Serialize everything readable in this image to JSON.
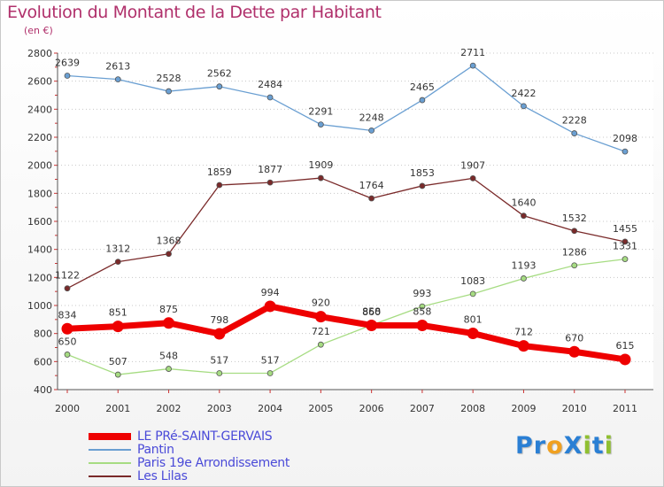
{
  "header": {
    "title": "Evolution du Montant de la Dette par Habitant",
    "subtitle": "(en €)"
  },
  "logo": {
    "text": "ProXiti",
    "letters": [
      {
        "ch": "P",
        "color": "#2a7fd4"
      },
      {
        "ch": "r",
        "color": "#2a7fd4"
      },
      {
        "ch": "o",
        "color": "#f0a020"
      },
      {
        "ch": "X",
        "color": "#2a7fd4"
      },
      {
        "ch": "i",
        "color": "#90c030"
      },
      {
        "ch": "t",
        "color": "#2a7fd4"
      },
      {
        "ch": "i",
        "color": "#90c030"
      }
    ]
  },
  "chart_data": {
    "type": "line",
    "title": "Evolution du Montant de la Dette par Habitant",
    "ylabel": "(en €)",
    "xlabel": "",
    "ylim": [
      400,
      2800
    ],
    "yticks": [
      400,
      600,
      800,
      1000,
      1200,
      1400,
      1600,
      1800,
      2000,
      2200,
      2400,
      2600,
      2800
    ],
    "categories": [
      "2000",
      "2001",
      "2002",
      "2003",
      "2004",
      "2005",
      "2006",
      "2007",
      "2008",
      "2009",
      "2010",
      "2011"
    ],
    "grid": "horizontal dotted",
    "legend_position": "bottom-left",
    "series": [
      {
        "name": "Pantin",
        "color": "#6a9fd2",
        "values": [
          2639,
          2613,
          2528,
          2562,
          2484,
          2291,
          2248,
          2465,
          2711,
          2422,
          2228,
          2098
        ]
      },
      {
        "name": "Les Lilas",
        "color": "#7a2a2a",
        "values": [
          1122,
          1312,
          1368,
          1859,
          1877,
          1909,
          1764,
          1853,
          1907,
          1640,
          1532,
          1455
        ]
      },
      {
        "name": "Paris 19e  Arrondissement",
        "color": "#a6dc82",
        "values": [
          650,
          507,
          548,
          517,
          517,
          721,
          860,
          993,
          1083,
          1193,
          1286,
          1331
        ]
      },
      {
        "name": "LE PRé-SAINT-GERVAIS",
        "color": "#ee0000",
        "values": [
          834,
          851,
          875,
          798,
          994,
          920,
          858,
          858,
          801,
          712,
          670,
          615
        ]
      }
    ],
    "legend_order": [
      "LE PRé-SAINT-GERVAIS",
      "Pantin",
      "Paris 19e  Arrondissement",
      "Les Lilas"
    ]
  }
}
